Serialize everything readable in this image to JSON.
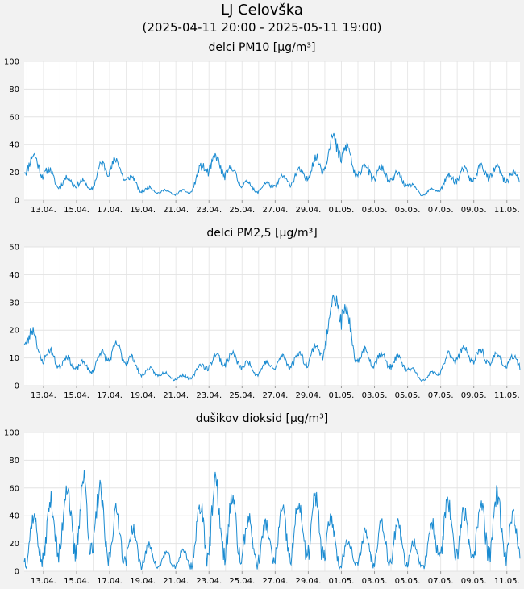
{
  "title": "LJ Celovška",
  "subtitle": "(2025-04-11 20:00 - 2025-05-11 19:00)",
  "chart_data": [
    {
      "type": "line",
      "title": "delci PM10 [µg/m³]",
      "color": "#1a8bd1",
      "ylim": [
        0,
        100
      ],
      "yticks": [
        0,
        20,
        40,
        60,
        80,
        100
      ],
      "xticks": [
        "13.04.",
        "15.04.",
        "17.04.",
        "19.04.",
        "21.04.",
        "23.04.",
        "25.04.",
        "27.04.",
        "29.04.",
        "01.05.",
        "03.05.",
        "05.05.",
        "07.05.",
        "09.05.",
        "11.05."
      ],
      "x_start": "2025-04-11 20:00",
      "x_end": "2025-05-11 19:00",
      "grid": true,
      "series_daily": [
        28,
        25,
        12,
        14,
        9,
        28,
        20,
        8,
        7,
        5,
        6,
        27,
        24,
        15,
        7,
        12,
        15,
        19,
        28,
        42,
        22,
        20,
        18,
        14,
        4,
        8,
        18,
        18,
        21,
        18,
        15
      ]
    },
    {
      "type": "line",
      "title": "delci PM2,5 [µg/m³]",
      "color": "#1a8bd1",
      "ylim": [
        0,
        50
      ],
      "yticks": [
        0,
        10,
        20,
        30,
        40,
        50
      ],
      "xticks": [
        "13.04.",
        "15.04.",
        "17.04.",
        "19.04.",
        "21.04.",
        "23.04.",
        "25.04.",
        "27.04.",
        "29.04.",
        "01.05.",
        "03.05.",
        "05.05.",
        "07.05.",
        "09.05.",
        "11.05."
      ],
      "x_start": "2025-04-11 20:00",
      "x_end": "2025-05-11 19:00",
      "grid": true,
      "series_daily": [
        21,
        12,
        9,
        8,
        6,
        12,
        12,
        5,
        5,
        3,
        3,
        8,
        10,
        9,
        5,
        8,
        9,
        10,
        13,
        34,
        11,
        10,
        9,
        8,
        2,
        5,
        12,
        11,
        10,
        9,
        8
      ]
    },
    {
      "type": "line",
      "title": "dušikov dioksid [µg/m³]",
      "color": "#1a8bd1",
      "ylim": [
        0,
        100
      ],
      "yticks": [
        0,
        20,
        40,
        60,
        80,
        100
      ],
      "xticks": [
        "13.04.",
        "15.04.",
        "17.04.",
        "19.04.",
        "21.04.",
        "23.04.",
        "25.04.",
        "27.04.",
        "29.04.",
        "01.05.",
        "03.05.",
        "05.05.",
        "07.05.",
        "09.05.",
        "11.05."
      ],
      "x_start": "2025-04-11 20:00",
      "x_end": "2025-05-11 19:00",
      "grid": true,
      "series_daily": [
        25,
        22,
        35,
        38,
        40,
        30,
        22,
        15,
        8,
        8,
        10,
        40,
        35,
        28,
        18,
        22,
        28,
        30,
        32,
        15,
        12,
        20,
        22,
        18,
        8,
        28,
        30,
        22,
        35,
        30,
        18
      ]
    }
  ]
}
